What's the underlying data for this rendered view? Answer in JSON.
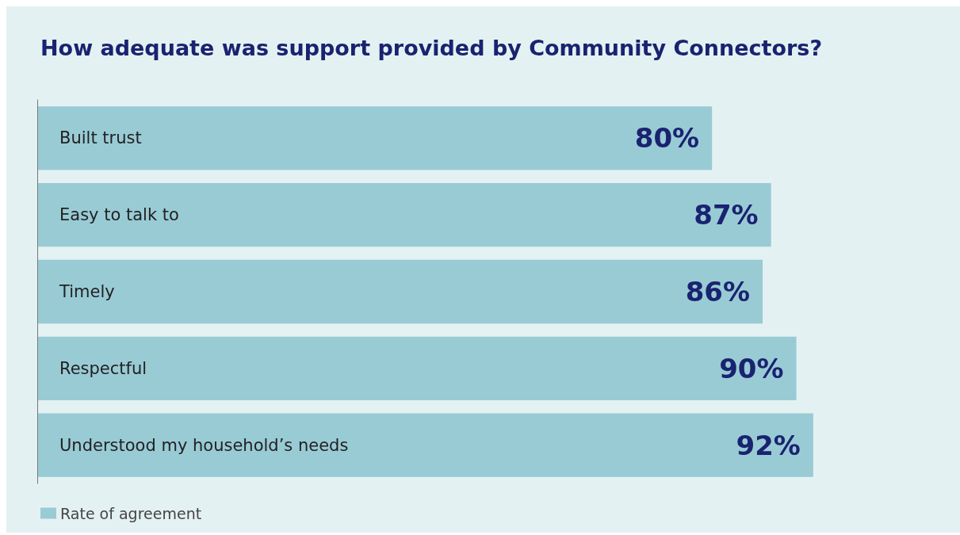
{
  "chart_data": {
    "type": "bar",
    "orientation": "horizontal",
    "title": "How adequate was support provided by Community Connectors?",
    "categories": [
      "Built trust",
      "Easy to talk to",
      "Timely",
      "Respectful",
      "Understood my household’s needs"
    ],
    "series": [
      {
        "name": "Rate of agreement",
        "color": "#99cbd5",
        "values": [
          80,
          87,
          86,
          90,
          92
        ],
        "value_labels": [
          "80%",
          "87%",
          "86%",
          "90%",
          "92%"
        ]
      }
    ],
    "legend": "bottom left"
  }
}
